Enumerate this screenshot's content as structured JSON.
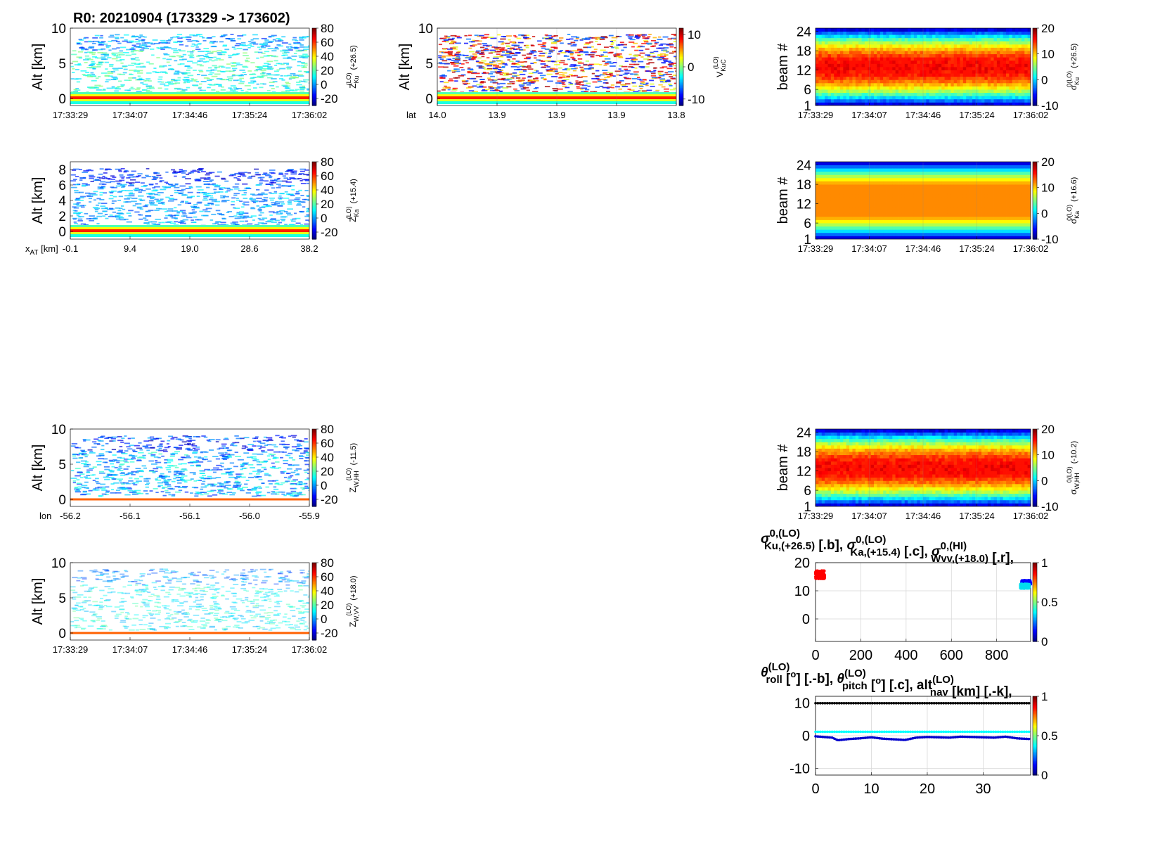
{
  "figure_title": "R0:  20210904 (173329 -> 173602)",
  "time_ticks": [
    "17:33:29",
    "17:34:07",
    "17:34:46",
    "17:35:24",
    "17:36:02"
  ],
  "chart_data": [
    {
      "id": "zku",
      "type": "heatmap",
      "ylabel": "Alt [km]",
      "ylim": [
        -1,
        10
      ],
      "yticks": [
        "0",
        "5",
        "10"
      ],
      "xaxis_label": "",
      "xticks": [
        "17:33:29",
        "17:34:07",
        "17:34:46",
        "17:35:24",
        "17:36:02"
      ],
      "colorbar": {
        "ticks": [
          "-20",
          "0",
          "20",
          "40",
          "60",
          "80"
        ],
        "range": [
          -30,
          80
        ],
        "label_main": "Z",
        "label_sub": "Ku",
        "label_sup": "(LO)",
        "label_suffix": "(+26.5)"
      },
      "field": "sparse_cyan",
      "surface_band": true,
      "grid": false
    },
    {
      "id": "vkuc",
      "type": "heatmap",
      "ylabel": "Alt [km]",
      "ylim": [
        -1,
        10
      ],
      "yticks": [
        "0",
        "5",
        "10"
      ],
      "xaxis_label": "lat",
      "xticks": [
        "14.0",
        "13.9",
        "13.9",
        "13.9",
        "13.8"
      ],
      "colorbar": {
        "ticks": [
          "-10",
          "0",
          "10"
        ],
        "range": [
          -12,
          12
        ],
        "label_main": "V",
        "label_sub": "KuC",
        "label_sup": "(LO)",
        "label_suffix": ""
      },
      "field": "doppler_noise",
      "surface_band": true,
      "grid": true
    },
    {
      "id": "sigku",
      "type": "heatmap",
      "ylabel": "beam #",
      "ylim": [
        1,
        25
      ],
      "yticks": [
        "1",
        "6",
        "12",
        "18",
        "24"
      ],
      "xaxis_label": "",
      "xticks": [
        "17:33:29",
        "17:34:07",
        "17:34:46",
        "17:35:24",
        "17:36:02"
      ],
      "colorbar": {
        "ticks": [
          "-10",
          "0",
          "10",
          "20"
        ],
        "range": [
          -10,
          20
        ],
        "label_main": "σ",
        "label_sub": "Ku",
        "label_sup": "0(LO)",
        "label_suffix": "(+26.5)"
      },
      "field": "beam_noisy",
      "surface_band": false,
      "grid": true
    },
    {
      "id": "zka",
      "type": "heatmap",
      "ylabel": "Alt [km]",
      "ylim": [
        -1,
        9
      ],
      "yticks": [
        "0",
        "2",
        "4",
        "6",
        "8"
      ],
      "xaxis_label": "x_AT [km]",
      "xticks": [
        "-0.1",
        "9.4",
        "19.0",
        "28.6",
        "38.2"
      ],
      "colorbar": {
        "ticks": [
          "-20",
          "0",
          "20",
          "40",
          "60",
          "80"
        ],
        "range": [
          -30,
          80
        ],
        "label_main": "Z",
        "label_sub": "Ka",
        "label_sup": "(LO)",
        "label_suffix": "(+15.4)"
      },
      "field": "sparse_blue",
      "surface_band": true,
      "grid": false
    },
    {
      "id": "sigka",
      "type": "heatmap",
      "ylabel": "beam #",
      "ylim": [
        1,
        25
      ],
      "yticks": [
        "1",
        "6",
        "12",
        "18",
        "24"
      ],
      "xaxis_label": "",
      "xticks": [
        "17:33:29",
        "17:34:07",
        "17:34:46",
        "17:35:24",
        "17:36:02"
      ],
      "colorbar": {
        "ticks": [
          "-10",
          "0",
          "10",
          "20"
        ],
        "range": [
          -10,
          20
        ],
        "label_main": "σ",
        "label_sub": "Ka",
        "label_sup": "0(LO)",
        "label_suffix": "(+16.6)"
      },
      "field": "beam_smooth",
      "surface_band": false,
      "grid": true
    },
    {
      "id": "zwhh",
      "type": "heatmap",
      "ylabel": "Alt [km]",
      "ylim": [
        -1,
        10
      ],
      "yticks": [
        "0",
        "5",
        "10"
      ],
      "xaxis_label": "lon",
      "xticks": [
        "-56.2",
        "-56.1",
        "-56.1",
        "-56.0",
        "-55.9"
      ],
      "colorbar": {
        "ticks": [
          "-20",
          "0",
          "20",
          "40",
          "60",
          "80"
        ],
        "range": [
          -30,
          80
        ],
        "label_main": "Z",
        "label_sub": "W,HH",
        "label_sup": "(LO)",
        "label_suffix": "(-11.5)"
      },
      "field": "sparse_mix",
      "surface_band": "thin",
      "grid": false
    },
    {
      "id": "sighh",
      "type": "heatmap",
      "ylabel": "beam #",
      "ylim": [
        1,
        25
      ],
      "yticks": [
        "1",
        "6",
        "12",
        "18",
        "24"
      ],
      "xaxis_label": "",
      "xticks": [
        "17:33:29",
        "17:34:07",
        "17:34:46",
        "17:35:24",
        "17:36:02"
      ],
      "colorbar": {
        "ticks": [
          "-10",
          "0",
          "10",
          "20"
        ],
        "range": [
          -10,
          20
        ],
        "label_main": "σ",
        "label_sub": "W,HH",
        "label_sup": "0(LO)",
        "label_suffix": "(-10.2)"
      },
      "field": "beam_noisy2",
      "surface_band": false,
      "grid": true
    },
    {
      "id": "zwvv",
      "type": "heatmap",
      "ylabel": "Alt [km]",
      "ylim": [
        -1,
        10
      ],
      "yticks": [
        "0",
        "5",
        "10"
      ],
      "xaxis_label": "",
      "xticks": [
        "17:33:29",
        "17:34:07",
        "17:34:46",
        "17:35:24",
        "17:36:02"
      ],
      "colorbar": {
        "ticks": [
          "-20",
          "0",
          "20",
          "40",
          "60",
          "80"
        ],
        "range": [
          -30,
          80
        ],
        "label_main": "Z",
        "label_sub": "W,VV",
        "label_sup": "(LO)",
        "label_suffix": "(+18.0)"
      },
      "field": "sparse_faint",
      "surface_band": "thin",
      "grid": false
    },
    {
      "id": "sig_series",
      "type": "scatter",
      "title_parts": [
        "σ",
        "0,(LO)",
        "Ku,(+26.5)",
        " [.b],  ",
        "σ",
        "0,(LO)",
        "Ka,(+15.4)",
        " [.c],  ",
        "σ",
        "0,(HI)",
        "Wvv,(+18.0)",
        " [.r],"
      ],
      "xlim": [
        0,
        950
      ],
      "ylim": [
        -8,
        20
      ],
      "xticks": [
        "0",
        "200",
        "400",
        "600",
        "800"
      ],
      "xtick_values": [
        0,
        200,
        400,
        600,
        800
      ],
      "yticks": [
        "0",
        "10",
        "20"
      ],
      "ytick_values": [
        0,
        10,
        20
      ],
      "colorbar": {
        "ticks": [
          "0",
          "0.5",
          "1"
        ],
        "range": [
          0,
          1
        ]
      },
      "series": [
        {
          "name": "Wvv (red)",
          "color": "#ff0000",
          "x_range": [
            0,
            40
          ],
          "y_center": 15.7,
          "y_spread": 1.4
        },
        {
          "name": "Ku (blue)",
          "color": "#0000ff",
          "x_range": [
            910,
            950
          ],
          "y_center": 13.0,
          "y_spread": 0.7
        },
        {
          "name": "Ka (cyan)",
          "color": "#00ddee",
          "x_range": [
            905,
            945
          ],
          "y_center": 11.6,
          "y_spread": 0.8
        }
      ],
      "grid": true
    },
    {
      "id": "attitude_series",
      "type": "line",
      "title_parts": [
        "θ",
        "(LO)",
        "roll",
        " [",
        "o",
        "] [.-b],  ",
        "θ",
        "(LO)",
        "pitch",
        " [",
        "o",
        "] [.c],  ",
        "alt",
        "(LO)",
        "nav",
        " [km] [.-k],"
      ],
      "xlim": [
        0,
        38.5
      ],
      "ylim": [
        -12,
        12
      ],
      "xticks": [
        "0",
        "10",
        "20",
        "30"
      ],
      "xtick_values": [
        0,
        10,
        20,
        30
      ],
      "yticks": [
        "-10",
        "0",
        "10"
      ],
      "ytick_values": [
        -10,
        0,
        10
      ],
      "colorbar": {
        "ticks": [
          "0",
          "0.5",
          "1"
        ],
        "range": [
          0,
          1
        ]
      },
      "series": [
        {
          "name": "alt nav (black)",
          "color": "#000000",
          "x": [
            0,
            5,
            10,
            15,
            20,
            25,
            30,
            35,
            38.2
          ],
          "y": [
            9.9,
            9.9,
            9.9,
            9.9,
            9.9,
            9.9,
            9.9,
            9.9,
            9.9
          ]
        },
        {
          "name": "pitch (cyan)",
          "color": "#00ffff",
          "x": [
            0,
            5,
            10,
            15,
            20,
            25,
            30,
            35,
            38.2
          ],
          "y": [
            1.2,
            1.2,
            1.2,
            1.2,
            1.2,
            1.2,
            1.2,
            1.2,
            1.2
          ]
        },
        {
          "name": "roll (blue)",
          "color": "#0000cc",
          "x": [
            0,
            1.5,
            3,
            4,
            6,
            8,
            10,
            12,
            14,
            16,
            18,
            20,
            22,
            24,
            26,
            28,
            30,
            32,
            34,
            36,
            38.2
          ],
          "y": [
            -0.2,
            -0.4,
            -0.6,
            -1.4,
            -1.0,
            -0.8,
            -0.5,
            -0.9,
            -1.1,
            -1.3,
            -0.6,
            -0.4,
            -0.5,
            -0.6,
            -0.3,
            -0.4,
            -0.5,
            -0.6,
            -0.3,
            -0.8,
            -1.0
          ]
        }
      ],
      "grid": true
    }
  ]
}
